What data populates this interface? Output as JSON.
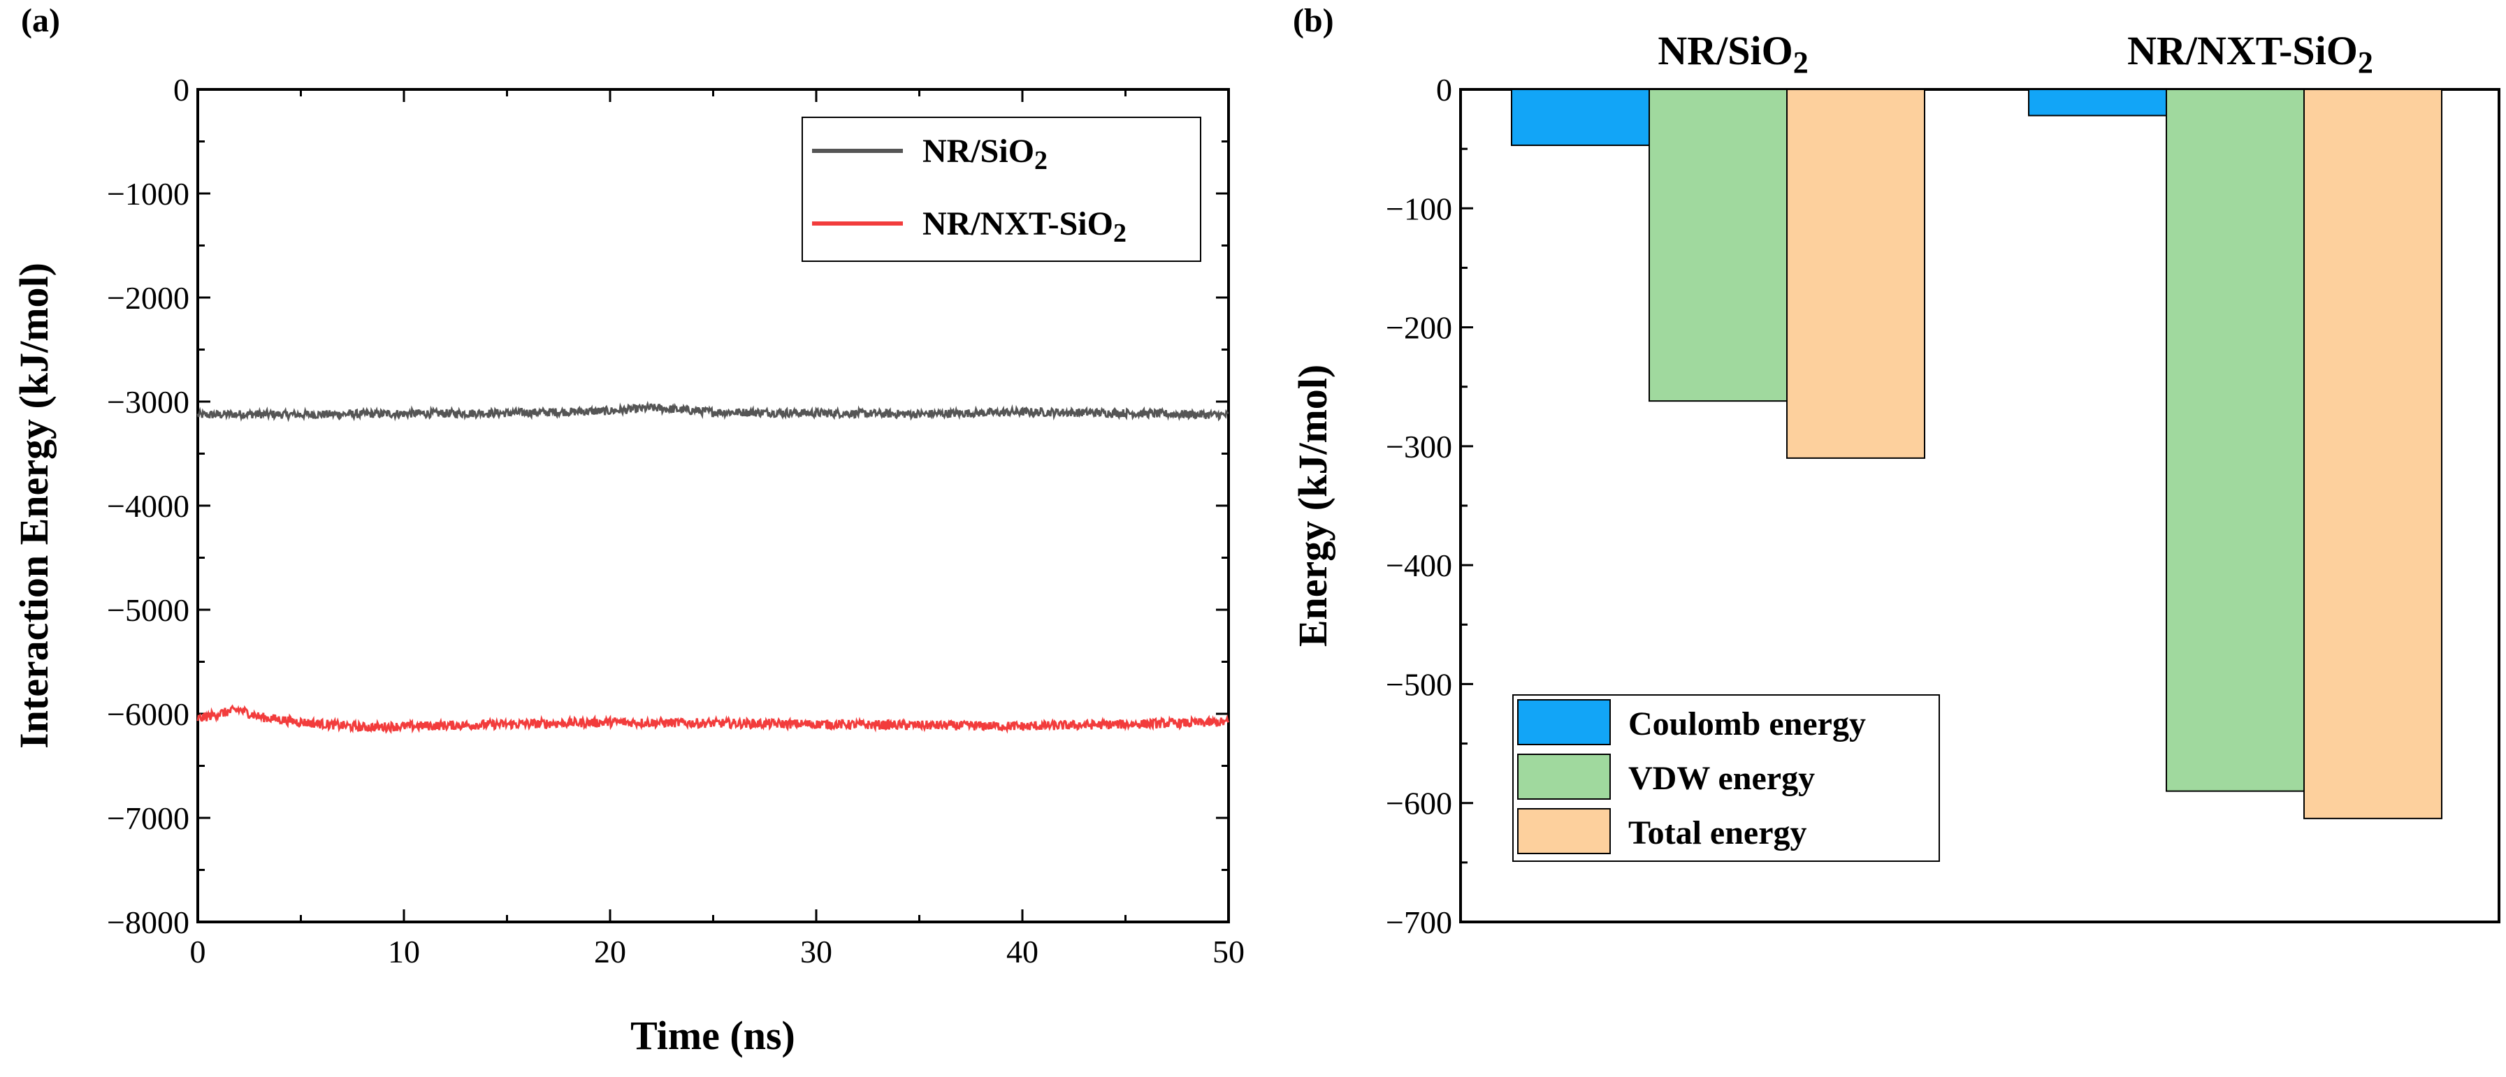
{
  "colors": {
    "series_a": "#555555",
    "series_b": "#f23c3c",
    "coulomb": "#12a5f7",
    "vdw": "#a0d99e",
    "total": "#fdd09d",
    "axis": "#000000"
  },
  "chart_data": [
    {
      "panel_label": "(a)",
      "type": "line",
      "xlabel": "Time (ns)",
      "ylabel": "Interaction Energy (kJ/mol)",
      "xlim": [
        0,
        50
      ],
      "ylim": [
        -8000,
        0
      ],
      "x_ticks": [
        "0",
        "10",
        "20",
        "30",
        "40",
        "50"
      ],
      "y_ticks": [
        "0",
        "−1000",
        "−2000",
        "−3000",
        "−4000",
        "−5000",
        "−6000",
        "−7000",
        "−8000"
      ],
      "legend": {
        "placement": "top-right"
      },
      "series": [
        {
          "key": "nr_sio2",
          "name_main": "NR/SiO",
          "name_sub": "2",
          "name_tail": "",
          "color_key": "series_a",
          "mean": -3120,
          "noise": 40,
          "x": [
            0,
            2,
            5,
            10,
            15,
            20,
            22,
            25,
            30,
            35,
            40,
            45,
            50
          ],
          "y": [
            -3130,
            -3120,
            -3125,
            -3115,
            -3110,
            -3090,
            -3060,
            -3100,
            -3110,
            -3120,
            -3100,
            -3110,
            -3130
          ]
        },
        {
          "key": "nr_nxt_sio2",
          "name_main": "NR/NXT-SiO",
          "name_sub": "2",
          "name_tail": "",
          "color_key": "series_b",
          "mean": -6110,
          "noise": 45,
          "x": [
            0,
            1,
            2,
            3,
            5,
            8,
            10,
            15,
            20,
            25,
            30,
            35,
            40,
            45,
            50
          ],
          "y": [
            -6050,
            -6000,
            -5960,
            -6030,
            -6080,
            -6130,
            -6120,
            -6100,
            -6080,
            -6090,
            -6100,
            -6110,
            -6120,
            -6100,
            -6080
          ]
        }
      ]
    },
    {
      "panel_label": "(b)",
      "type": "bar",
      "xlabel": "",
      "ylabel": "Energy (kJ/mol)",
      "ylim": [
        -700,
        0
      ],
      "y_ticks": [
        "0",
        "−100",
        "−200",
        "−300",
        "−400",
        "−500",
        "−600",
        "−700"
      ],
      "groups": [
        {
          "label_main": "NR/SiO",
          "label_sub": "2"
        },
        {
          "label_main": "NR/NXT-SiO",
          "label_sub": "2"
        }
      ],
      "series": [
        {
          "name": "Coulomb energy",
          "color_key": "coulomb",
          "values": [
            -47,
            -22
          ]
        },
        {
          "name": "VDW energy",
          "color_key": "vdw",
          "values": [
            -262,
            -590
          ]
        },
        {
          "name": "Total energy",
          "color_key": "total",
          "values": [
            -310,
            -613
          ]
        }
      ],
      "legend": {
        "placement": "bottom-left"
      }
    }
  ]
}
